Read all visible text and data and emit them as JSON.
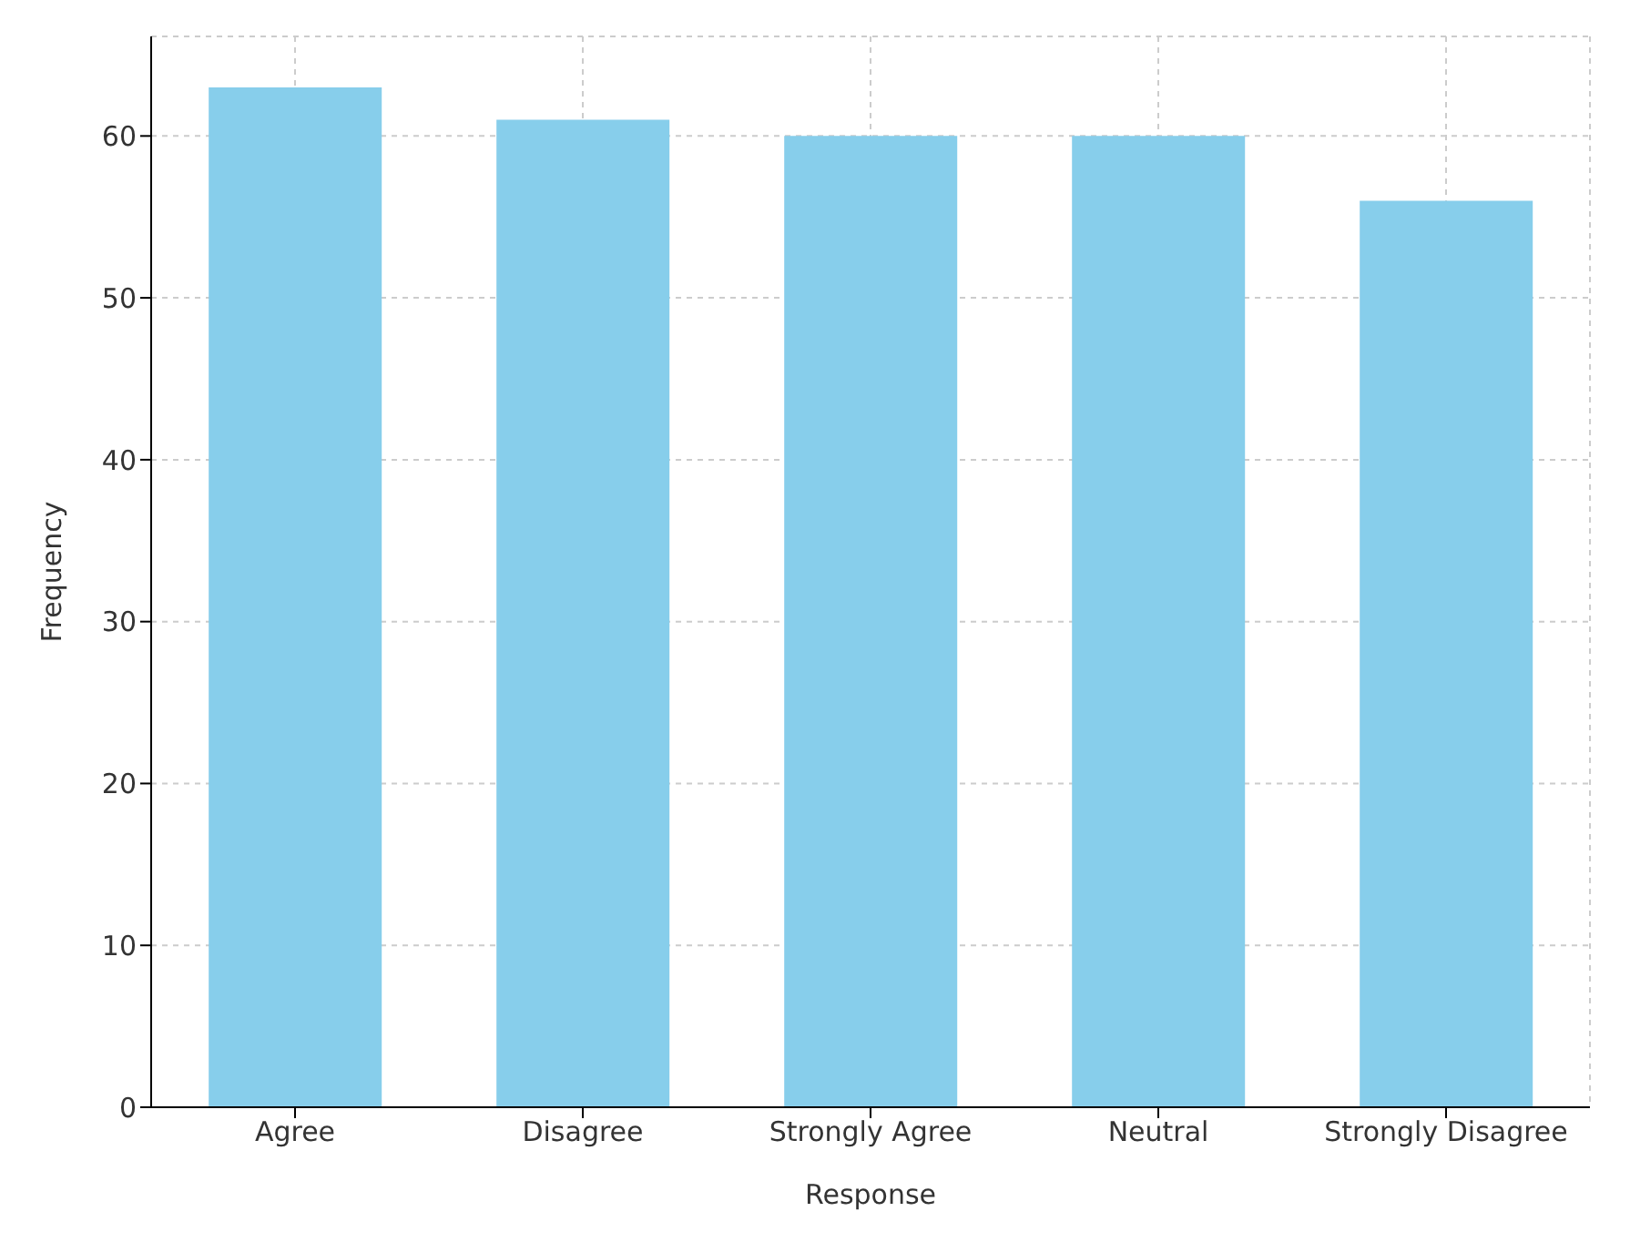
{
  "chart_data": {
    "type": "bar",
    "xlabel": "Response",
    "ylabel": "Frequency",
    "categories": [
      "Agree",
      "Disagree",
      "Strongly Agree",
      "Neutral",
      "Strongly Disagree"
    ],
    "values": [
      63,
      61,
      60,
      60,
      56
    ],
    "color": "#87ceeb",
    "ylim": [
      0,
      66.15
    ],
    "yticks": [
      0,
      10,
      20,
      30,
      40,
      50,
      60
    ],
    "grid": true
  }
}
